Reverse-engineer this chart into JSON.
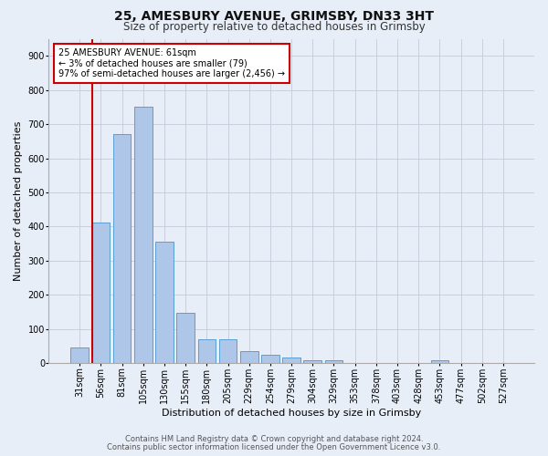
{
  "title1": "25, AMESBURY AVENUE, GRIMSBY, DN33 3HT",
  "title2": "Size of property relative to detached houses in Grimsby",
  "xlabel": "Distribution of detached houses by size in Grimsby",
  "ylabel": "Number of detached properties",
  "categories": [
    "31sqm",
    "56sqm",
    "81sqm",
    "105sqm",
    "130sqm",
    "155sqm",
    "180sqm",
    "205sqm",
    "229sqm",
    "254sqm",
    "279sqm",
    "304sqm",
    "329sqm",
    "353sqm",
    "378sqm",
    "403sqm",
    "428sqm",
    "453sqm",
    "477sqm",
    "502sqm",
    "527sqm"
  ],
  "values": [
    47,
    411,
    670,
    750,
    355,
    148,
    70,
    70,
    35,
    25,
    17,
    10,
    10,
    0,
    0,
    0,
    0,
    10,
    0,
    0,
    0
  ],
  "bar_color": "#aec6e8",
  "bar_edge_color": "#5a9fd4",
  "marker_color": "#cc0000",
  "annotation_text": "25 AMESBURY AVENUE: 61sqm\n← 3% of detached houses are smaller (79)\n97% of semi-detached houses are larger (2,456) →",
  "annotation_box_color": "#ffffff",
  "annotation_box_edge": "#cc0000",
  "footer1": "Contains HM Land Registry data © Crown copyright and database right 2024.",
  "footer2": "Contains public sector information licensed under the Open Government Licence v3.0.",
  "ylim": [
    0,
    950
  ],
  "yticks": [
    0,
    100,
    200,
    300,
    400,
    500,
    600,
    700,
    800,
    900
  ],
  "background_color": "#e8eef8",
  "grid_color": "#c8c8d8",
  "title1_fontsize": 10,
  "title2_fontsize": 8.5,
  "ylabel_fontsize": 8,
  "xlabel_fontsize": 8,
  "tick_fontsize": 7,
  "footer_fontsize": 6
}
